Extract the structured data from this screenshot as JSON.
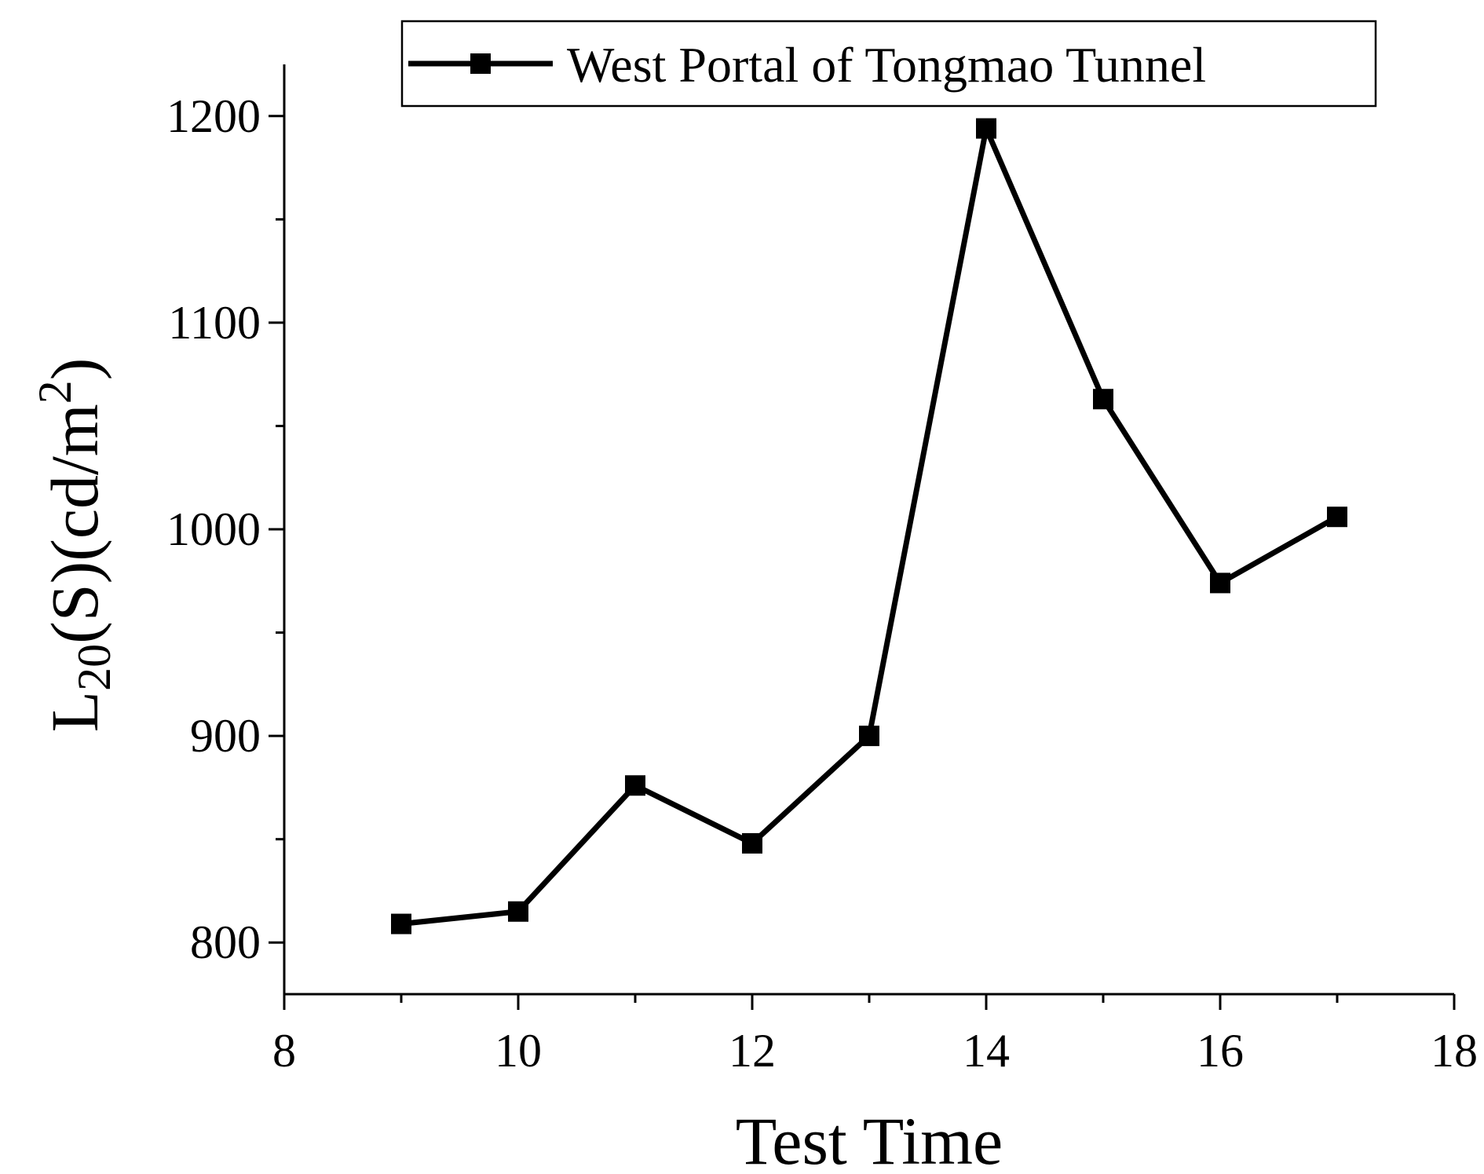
{
  "chart_data": {
    "type": "line",
    "title": "",
    "xlabel": "Test Time",
    "ylabel": {
      "base": "L",
      "subscript": "20",
      "middle": "(S)(cd/m",
      "superscript": "2",
      "end": ")"
    },
    "xlim": [
      8,
      18
    ],
    "ylim": [
      775,
      1225
    ],
    "xticks": [
      8,
      10,
      12,
      14,
      16,
      18
    ],
    "yticks": [
      800,
      900,
      1000,
      1100,
      1200
    ],
    "grid": false,
    "legend_position": "top-right",
    "series": [
      {
        "name": "West Portal of Tongmao Tunnel",
        "color": "#000000",
        "marker": "square",
        "x": [
          9,
          10,
          11,
          12,
          13,
          14,
          15,
          16,
          17
        ],
        "values": [
          809,
          815,
          876,
          848,
          900,
          1194,
          1063,
          974,
          1006
        ]
      }
    ]
  }
}
